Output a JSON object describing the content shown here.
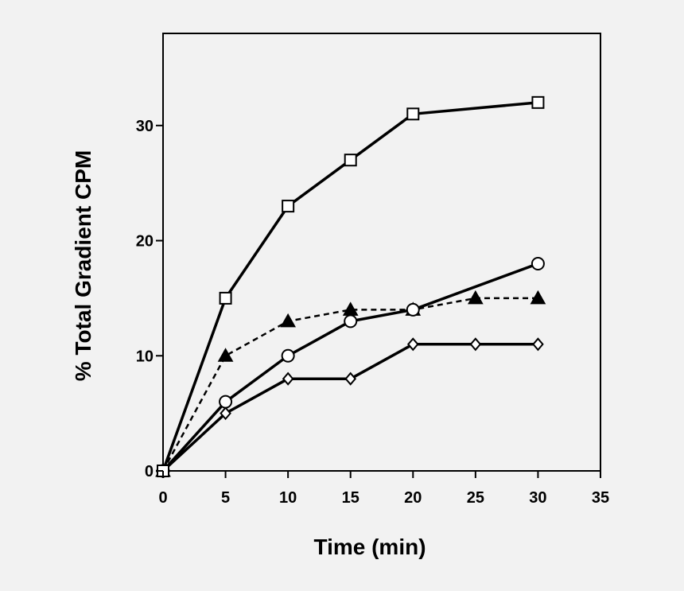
{
  "chart_data": {
    "type": "line",
    "title": "",
    "xlabel": "Time (min)",
    "ylabel": "% Total Gradient CPM",
    "xlim": [
      0,
      35
    ],
    "ylim": [
      0,
      38
    ],
    "xticks": [
      0,
      5,
      10,
      15,
      20,
      25,
      30,
      35
    ],
    "yticks": [
      0,
      10,
      20,
      30
    ],
    "grid": false,
    "legend": "none",
    "series": [
      {
        "name": "open-square",
        "marker": "square",
        "line": "solid",
        "x": [
          0,
          5,
          10,
          15,
          20,
          30
        ],
        "y": [
          0,
          15,
          23,
          27,
          31,
          32
        ]
      },
      {
        "name": "open-circle",
        "marker": "circle",
        "line": "solid",
        "x": [
          0,
          5,
          10,
          15,
          20,
          30
        ],
        "y": [
          0,
          6,
          10,
          13,
          14,
          18
        ]
      },
      {
        "name": "filled-triangle",
        "marker": "triangle",
        "line": "dashed",
        "x": [
          0,
          5,
          10,
          15,
          20,
          25,
          30
        ],
        "y": [
          0,
          10,
          13,
          14,
          14,
          15,
          15
        ]
      },
      {
        "name": "open-diamond",
        "marker": "diamond",
        "line": "solid",
        "x": [
          0,
          5,
          10,
          15,
          20,
          25,
          30
        ],
        "y": [
          0,
          5,
          8,
          8,
          11,
          11,
          11
        ]
      }
    ]
  }
}
